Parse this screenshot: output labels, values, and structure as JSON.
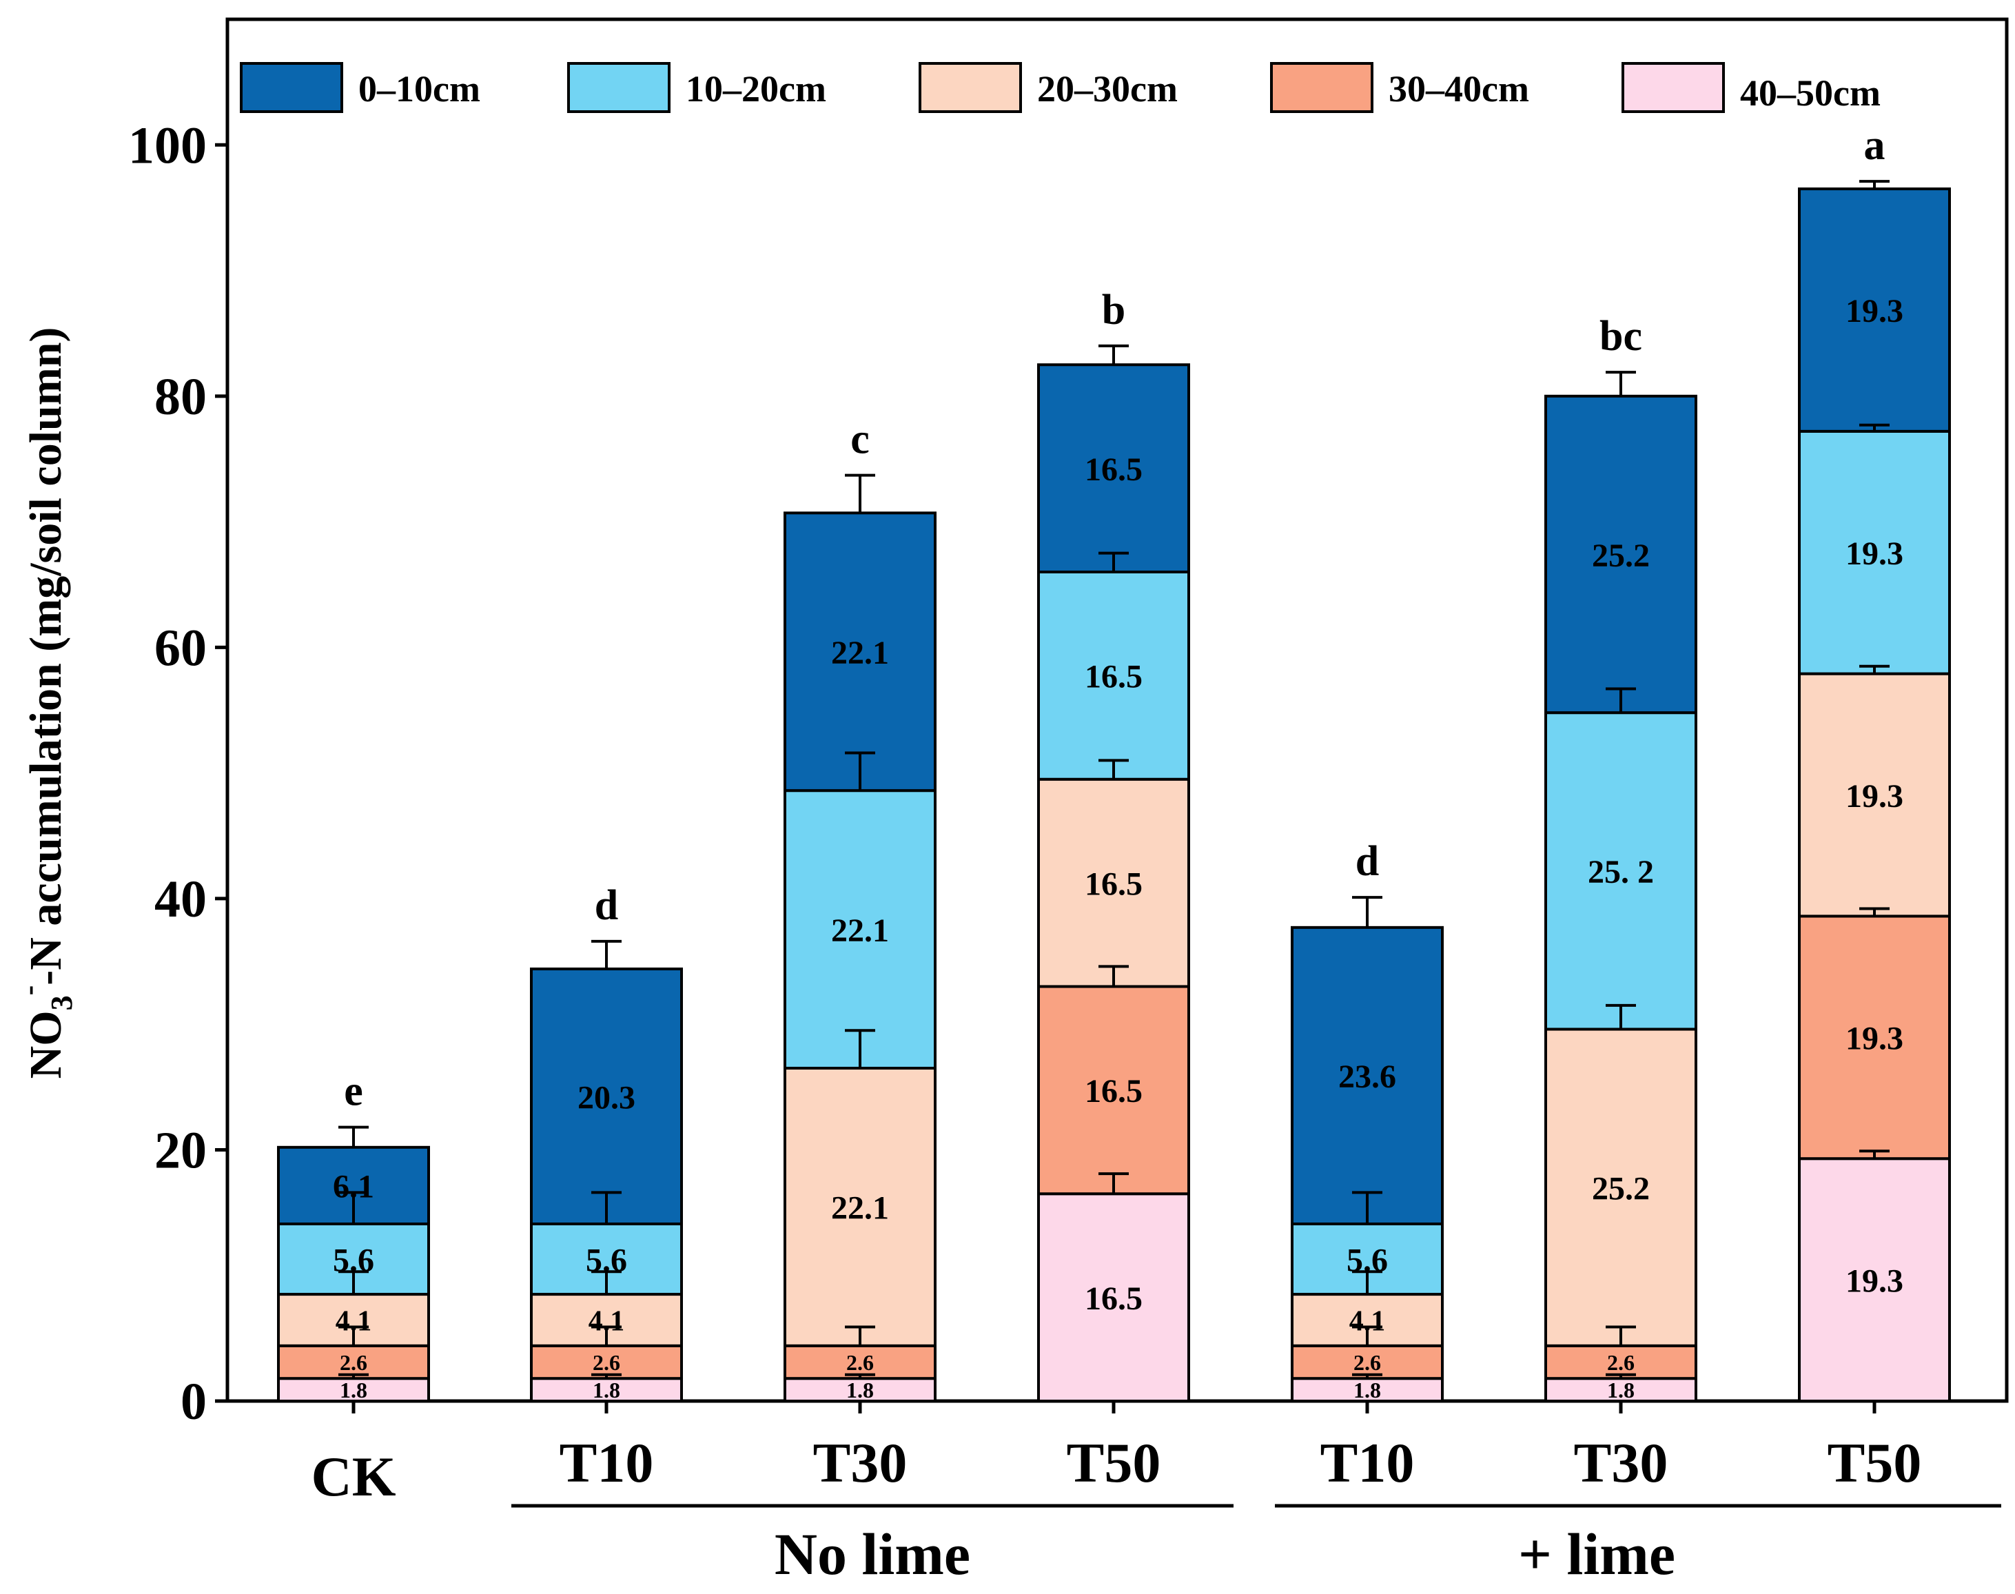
{
  "chart_data": {
    "type": "bar",
    "stacked": true,
    "title": "",
    "xlabel": "",
    "ylabel": "NO3−-N accumulation (mg/soil column)",
    "ylabel_parts": {
      "main": "NO",
      "sub": "3",
      "sup": "-",
      "rest": "-N accumulation (mg/soil column)"
    },
    "ylim": [
      0,
      110
    ],
    "yticks": [
      0,
      20,
      40,
      60,
      80,
      100
    ],
    "categories": [
      "CK",
      "T10",
      "T30",
      "T50",
      "T10",
      "T30",
      "T50"
    ],
    "groups": [
      {
        "label": "No lime",
        "members": [
          1,
          2,
          3
        ]
      },
      {
        "label": "+ lime",
        "members": [
          4,
          5,
          6
        ]
      }
    ],
    "legend_position": "top",
    "series": [
      {
        "name": "0–10cm",
        "color": "#0A66AE",
        "values": [
          6.1,
          20.3,
          22.1,
          16.5,
          23.6,
          25.2,
          19.3
        ],
        "errors": [
          1.6,
          2.2,
          3.0,
          1.5,
          2.4,
          1.9,
          0.6
        ]
      },
      {
        "name": "10–20cm",
        "color": "#72D4F3",
        "values": [
          5.6,
          5.6,
          22.1,
          16.5,
          5.6,
          25.2,
          19.3
        ],
        "errors": [
          2.5,
          2.5,
          3.0,
          1.5,
          2.5,
          1.9,
          0.5
        ]
      },
      {
        "name": "20–30cm",
        "color": "#FCD6C1",
        "values": [
          4.1,
          4.1,
          22.1,
          16.5,
          4.1,
          25.2,
          19.3
        ],
        "errors": [
          1.8,
          1.8,
          3.0,
          1.5,
          1.8,
          1.9,
          0.6
        ]
      },
      {
        "name": "30–40cm",
        "color": "#F9A282",
        "values": [
          2.6,
          2.6,
          2.6,
          16.5,
          2.6,
          2.6,
          19.3
        ],
        "errors": [
          1.5,
          1.5,
          1.5,
          1.6,
          1.5,
          1.5,
          0.6
        ]
      },
      {
        "name": "40–50cm",
        "color": "#FDD8E9",
        "values": [
          1.8,
          1.8,
          1.8,
          16.5,
          1.8,
          1.8,
          19.3
        ],
        "errors": [
          0.3,
          0.3,
          0.3,
          1.6,
          0.3,
          0.3,
          0.6
        ]
      }
    ],
    "segment_labels": [
      [
        "6.1",
        "20.3",
        "22.1",
        "16.5",
        "23.6",
        "25.2",
        "19.3"
      ],
      [
        "5.6",
        "5.6",
        "22.1",
        "16.5",
        "5.6",
        "25. 2",
        "19.3"
      ],
      [
        "4.1",
        "4.1",
        "22.1",
        "16.5",
        "4.1",
        "25.2",
        "19.3"
      ],
      [
        "2.6",
        "2.6",
        "2.6",
        "16.5",
        "2.6",
        "2.6",
        "19.3"
      ],
      [
        "1.8",
        "1.8",
        "1.8",
        "16.5",
        "1.8",
        "1.8",
        "19.3"
      ]
    ],
    "significance_letters": [
      "e",
      "d",
      "c",
      "b",
      "d",
      "bc",
      "a"
    ]
  }
}
